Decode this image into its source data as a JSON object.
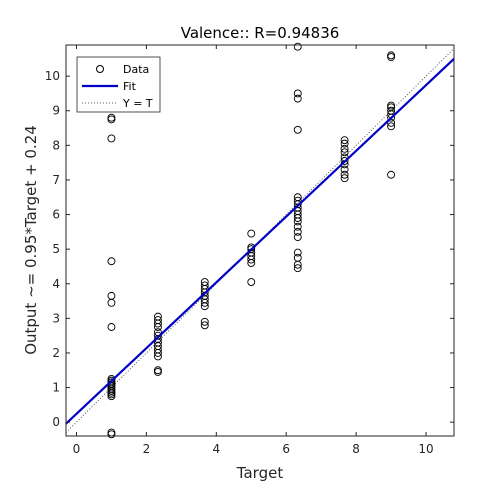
{
  "chart_data": {
    "type": "scatter",
    "title": "Valence:: R=0.94836",
    "xlabel": "Target",
    "ylabel": "Output ~= 0.95*Target + 0.24",
    "xlim": [
      -0.3,
      10.8
    ],
    "ylim": [
      -0.4,
      10.9
    ],
    "xticks": [
      0,
      2,
      4,
      6,
      8,
      10
    ],
    "yticks": [
      0,
      1,
      2,
      3,
      4,
      5,
      6,
      7,
      8,
      9,
      10
    ],
    "grid": false,
    "legend_position": "top-left",
    "legend": [
      {
        "label": "Data",
        "style": "circle-marker"
      },
      {
        "label": "Fit",
        "style": "solid-line"
      },
      {
        "label": "Y = T",
        "style": "dotted-line"
      }
    ],
    "fit": {
      "slope": 0.95,
      "intercept": 0.24,
      "color": "#0000c8"
    },
    "identity_color": "#555555",
    "marker_color": "#000000",
    "series": [
      {
        "name": "Data",
        "points": [
          [
            1,
            -0.3
          ],
          [
            1,
            -0.35
          ],
          [
            1,
            0.75
          ],
          [
            1,
            0.8
          ],
          [
            1,
            0.85
          ],
          [
            1,
            0.9
          ],
          [
            1,
            0.95
          ],
          [
            1,
            1.0
          ],
          [
            1,
            1.05
          ],
          [
            1,
            1.1
          ],
          [
            1,
            1.15
          ],
          [
            1,
            1.2
          ],
          [
            1,
            1.25
          ],
          [
            1,
            2.75
          ],
          [
            1,
            3.45
          ],
          [
            1,
            3.65
          ],
          [
            1,
            4.65
          ],
          [
            1,
            8.2
          ],
          [
            1,
            8.75
          ],
          [
            1,
            8.8
          ],
          [
            2.33,
            1.45
          ],
          [
            2.33,
            1.5
          ],
          [
            2.33,
            1.9
          ],
          [
            2.33,
            2.0
          ],
          [
            2.33,
            2.1
          ],
          [
            2.33,
            2.2
          ],
          [
            2.33,
            2.3
          ],
          [
            2.33,
            2.4
          ],
          [
            2.33,
            2.5
          ],
          [
            2.33,
            2.6
          ],
          [
            2.33,
            2.75
          ],
          [
            2.33,
            2.85
          ],
          [
            2.33,
            2.95
          ],
          [
            2.33,
            3.05
          ],
          [
            3.67,
            2.8
          ],
          [
            3.67,
            2.9
          ],
          [
            3.67,
            3.35
          ],
          [
            3.67,
            3.45
          ],
          [
            3.67,
            3.55
          ],
          [
            3.67,
            3.65
          ],
          [
            3.67,
            3.75
          ],
          [
            3.67,
            3.85
          ],
          [
            3.67,
            3.95
          ],
          [
            3.67,
            4.05
          ],
          [
            5,
            4.05
          ],
          [
            5,
            4.6
          ],
          [
            5,
            4.7
          ],
          [
            5,
            4.8
          ],
          [
            5,
            4.9
          ],
          [
            5,
            5.0
          ],
          [
            5,
            5.05
          ],
          [
            5,
            5.45
          ],
          [
            6.33,
            4.45
          ],
          [
            6.33,
            4.55
          ],
          [
            6.33,
            4.75
          ],
          [
            6.33,
            4.9
          ],
          [
            6.33,
            5.35
          ],
          [
            6.33,
            5.5
          ],
          [
            6.33,
            5.65
          ],
          [
            6.33,
            5.8
          ],
          [
            6.33,
            5.9
          ],
          [
            6.33,
            6.0
          ],
          [
            6.33,
            6.1
          ],
          [
            6.33,
            6.2
          ],
          [
            6.33,
            6.3
          ],
          [
            6.33,
            6.4
          ],
          [
            6.33,
            6.5
          ],
          [
            6.33,
            8.45
          ],
          [
            6.33,
            9.35
          ],
          [
            6.33,
            9.5
          ],
          [
            6.33,
            10.85
          ],
          [
            7.67,
            7.05
          ],
          [
            7.67,
            7.15
          ],
          [
            7.67,
            7.3
          ],
          [
            7.67,
            7.45
          ],
          [
            7.67,
            7.55
          ],
          [
            7.67,
            7.65
          ],
          [
            7.67,
            7.8
          ],
          [
            7.67,
            7.9
          ],
          [
            7.67,
            8.05
          ],
          [
            7.67,
            8.15
          ],
          [
            9,
            7.15
          ],
          [
            9,
            8.55
          ],
          [
            9,
            8.65
          ],
          [
            9,
            8.8
          ],
          [
            9,
            8.9
          ],
          [
            9,
            9.0
          ],
          [
            9,
            9.1
          ],
          [
            9,
            9.15
          ],
          [
            9,
            10.55
          ],
          [
            9,
            10.6
          ]
        ]
      }
    ]
  }
}
